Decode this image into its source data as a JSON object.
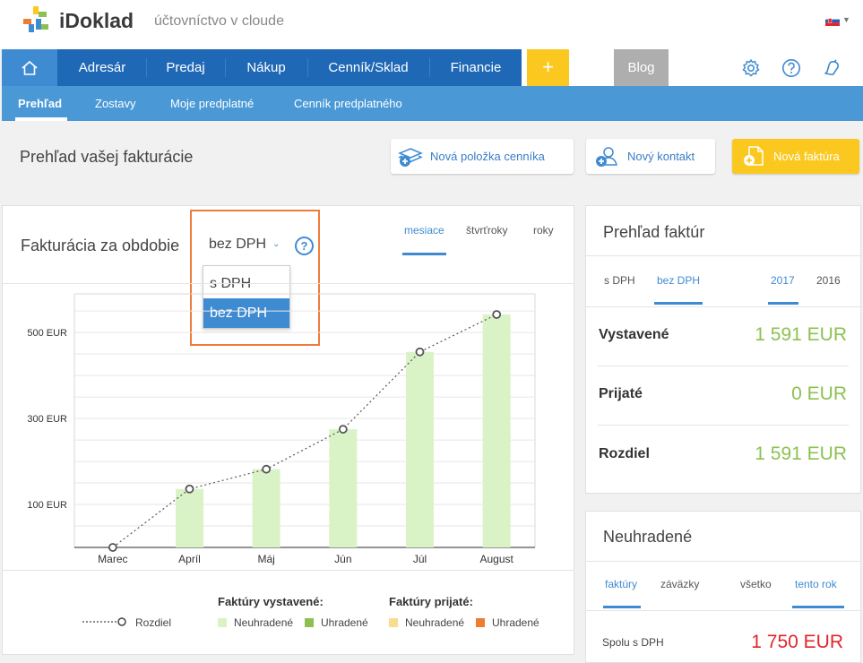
{
  "header": {
    "brand": "iDoklad",
    "tagline": "účtovníctvo v cloude",
    "language_flag": "slovak-flag-icon"
  },
  "nav": {
    "items": [
      "Adresár",
      "Predaj",
      "Nákup",
      "Cenník/Sklad",
      "Financie"
    ],
    "plus": "+",
    "blog": "Blog"
  },
  "subnav": {
    "items": [
      "Prehľad",
      "Zostavy",
      "Moje predplatné",
      "Cenník predplatného"
    ]
  },
  "page": {
    "title": "Prehľad vašej fakturácie"
  },
  "actions": {
    "new_pricelist": "Nová položka cenníka",
    "new_contact": "Nový kontakt",
    "new_invoice": "Nová faktúra"
  },
  "billing": {
    "title": "Fakturácia za obdobie",
    "vat_select": "bez DPH",
    "vat_options": [
      "s DPH",
      "bez DPH"
    ],
    "help": "?",
    "period_tabs": [
      "mesiace",
      "štvrťroky",
      "roky"
    ],
    "legend": {
      "issued_title": "Faktúry vystavené:",
      "received_title": "Faktúry prijaté:",
      "diff": "Rozdiel",
      "unpaid": "Neuhradené",
      "paid": "Uhradené"
    }
  },
  "chart_data": {
    "type": "bar",
    "categories": [
      "Marec",
      "Apríl",
      "Máj",
      "Jún",
      "Júl",
      "August"
    ],
    "series": [
      {
        "name": "Neuhradené",
        "values": [
          0,
          136,
          182,
          275,
          455,
          542
        ]
      },
      {
        "name": "Rozdiel",
        "values": [
          0,
          136,
          182,
          275,
          455,
          542
        ]
      }
    ],
    "y_ticks": [
      "100 EUR",
      "300 EUR",
      "500 EUR"
    ],
    "y_tick_values": [
      100,
      300,
      500
    ],
    "ylim": [
      0,
      590
    ],
    "colors": {
      "unpaid_issued": "#d9f3c6",
      "paid_issued": "#8cc152",
      "unpaid_received": "#f9dd8e",
      "paid_received": "#ee7d34"
    }
  },
  "summary": {
    "title": "Prehľad faktúr",
    "tabs": [
      "s DPH",
      "bez DPH",
      "2017",
      "2016"
    ],
    "rows": [
      {
        "label": "Vystavené",
        "value": "1 591 EUR"
      },
      {
        "label": "Prijaté",
        "value": "0 EUR"
      },
      {
        "label": "Rozdiel",
        "value": "1 591 EUR"
      }
    ]
  },
  "unpaid": {
    "title": "Neuhradené",
    "tabs": [
      "faktúry",
      "záväzky",
      "všetko",
      "tento rok"
    ],
    "total_label": "Spolu s DPH",
    "total_value": "1 750 EUR"
  }
}
